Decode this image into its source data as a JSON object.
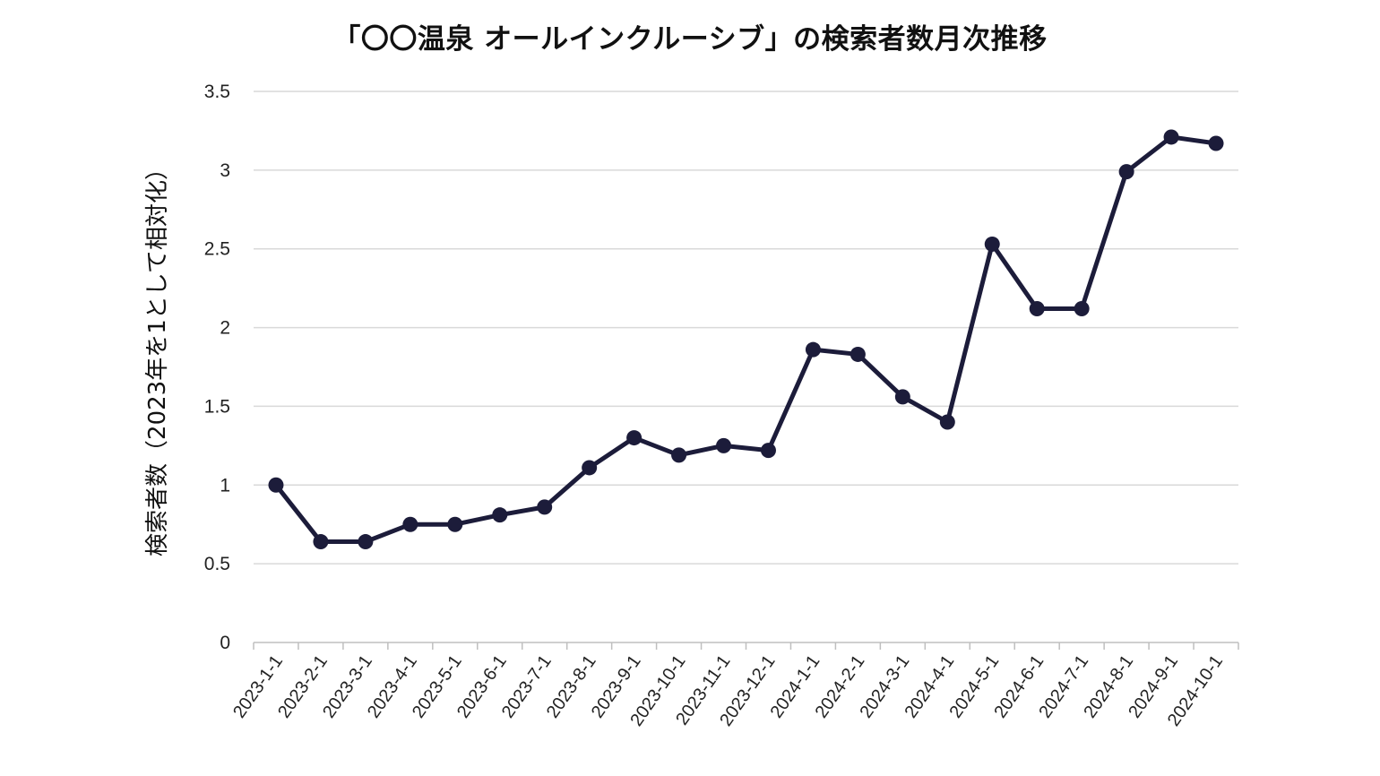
{
  "chart_data": {
    "type": "line",
    "title": "「〇〇温泉 オールインクルーシブ」の検索者数月次推移",
    "xlabel": "",
    "ylabel": "検索者数（2023年を1として相対化）",
    "categories": [
      "2023-1-1",
      "2023-2-1",
      "2023-3-1",
      "2023-4-1",
      "2023-5-1",
      "2023-6-1",
      "2023-7-1",
      "2023-8-1",
      "2023-9-1",
      "2023-10-1",
      "2023-11-1",
      "2023-12-1",
      "2024-1-1",
      "2024-2-1",
      "2024-3-1",
      "2024-4-1",
      "2024-5-1",
      "2024-6-1",
      "2024-7-1",
      "2024-8-1",
      "2024-9-1",
      "2024-10-1"
    ],
    "series": [
      {
        "values": [
          1.0,
          0.64,
          0.64,
          0.75,
          0.75,
          0.81,
          0.86,
          1.11,
          1.3,
          1.19,
          1.25,
          1.22,
          1.86,
          1.83,
          1.56,
          1.4,
          2.53,
          2.12,
          2.12,
          2.99,
          3.21,
          3.17
        ]
      }
    ],
    "ylim": [
      0,
      3.5
    ],
    "yticks": [
      "0",
      "0.5",
      "1",
      "1.5",
      "2",
      "2.5",
      "3",
      "3.5"
    ],
    "grid": "horizontal",
    "legend": "none",
    "colors": {
      "series": "#1c1c3a",
      "grid": "#d9d9d9"
    }
  }
}
